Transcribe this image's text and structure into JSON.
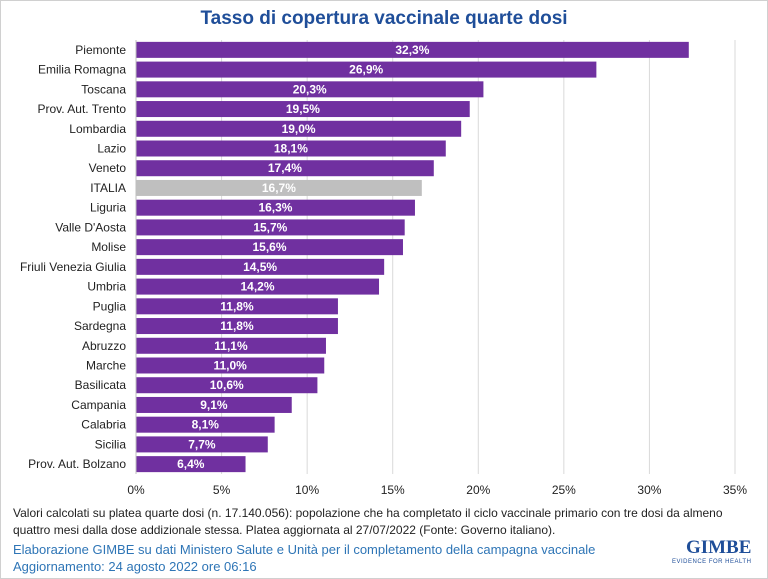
{
  "chart_data": {
    "type": "bar",
    "orientation": "horizontal",
    "title": "Tasso di copertura vaccinale quarte dosi",
    "categories": [
      "Piemonte",
      "Emilia Romagna",
      "Toscana",
      "Prov. Aut. Trento",
      "Lombardia",
      "Lazio",
      "Veneto",
      "ITALIA",
      "Liguria",
      "Valle D'Aosta",
      "Molise",
      "Friuli Venezia Giulia",
      "Umbria",
      "Puglia",
      "Sardegna",
      "Abruzzo",
      "Marche",
      "Basilicata",
      "Campania",
      "Calabria",
      "Sicilia",
      "Prov. Aut. Bolzano"
    ],
    "values": [
      32.3,
      26.9,
      20.3,
      19.5,
      19.0,
      18.1,
      17.4,
      16.7,
      16.3,
      15.7,
      15.6,
      14.5,
      14.2,
      11.8,
      11.8,
      11.1,
      11.0,
      10.6,
      9.1,
      8.1,
      7.7,
      6.4
    ],
    "labels": [
      "32,3%",
      "26,9%",
      "20,3%",
      "19,5%",
      "19,0%",
      "18,1%",
      "17,4%",
      "16,7%",
      "16,3%",
      "15,7%",
      "15,6%",
      "14,5%",
      "14,2%",
      "11,8%",
      "11,8%",
      "11,1%",
      "11,0%",
      "10,6%",
      "9,1%",
      "8,1%",
      "7,7%",
      "6,4%"
    ],
    "xlim": [
      0,
      35
    ],
    "xticks": [
      "0%",
      "5%",
      "10%",
      "15%",
      "20%",
      "25%",
      "30%",
      "35%"
    ],
    "grid": true,
    "colors": {
      "bar": "#7030A0",
      "highlight": "#BFBFBF"
    },
    "highlight": "ITALIA"
  },
  "footer": {
    "note1": "Valori calcolati su platea quarte dosi (n. 17.140.056): popolazione che ha completato il ciclo vaccinale primario con tre dosi da almeno",
    "note2": "quattro mesi dalla dose addizionale stessa. Platea aggiornata al 27/07/2022 (Fonte: Governo italiano).",
    "source": "Elaborazione GIMBE su dati Ministero Salute e Unità per il completamento della campagna vaccinale",
    "updated": "Aggiornamento: 24 agosto 2022 ore 06:16"
  },
  "logo": {
    "name": "GIMBE",
    "tagline": "EVIDENCE FOR HEALTH"
  }
}
